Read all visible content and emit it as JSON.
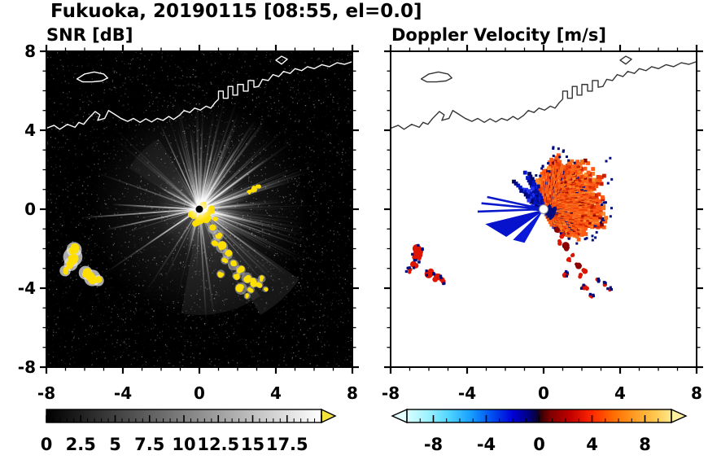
{
  "title": "Fukuoka, 20190115 [08:55, el=0.0]",
  "axes": {
    "xlim": [
      -8,
      8
    ],
    "ylim": [
      -8,
      8
    ],
    "xticks": [
      "-8",
      "-4",
      "0",
      "4",
      "8"
    ],
    "xtick_values": [
      -8,
      -4,
      0,
      4,
      8
    ],
    "yticks": [
      "8",
      "4",
      "0",
      "-4",
      "-8"
    ],
    "ytick_values": [
      8,
      4,
      0,
      -4,
      -8
    ]
  },
  "coastline": {
    "color_snr": "#ffffff",
    "color_vel": "#333333",
    "paths": [
      {
        "closed": false,
        "points": [
          [
            -8,
            4.1
          ],
          [
            -7.6,
            4.25
          ],
          [
            -7.3,
            4.05
          ],
          [
            -6.9,
            4.3
          ],
          [
            -6.5,
            4.15
          ],
          [
            -6.3,
            4.4
          ],
          [
            -6.05,
            4.3
          ],
          [
            -5.8,
            4.6
          ],
          [
            -5.45,
            4.95
          ],
          [
            -5.2,
            4.78
          ],
          [
            -5.32,
            4.5
          ],
          [
            -4.95,
            4.6
          ],
          [
            -4.75,
            5.0
          ],
          [
            -4.45,
            4.82
          ],
          [
            -4.1,
            4.6
          ],
          [
            -3.75,
            4.45
          ],
          [
            -3.45,
            4.6
          ],
          [
            -3.1,
            4.4
          ],
          [
            -2.8,
            4.58
          ],
          [
            -2.5,
            4.42
          ],
          [
            -2.2,
            4.6
          ],
          [
            -1.9,
            4.5
          ],
          [
            -1.6,
            4.7
          ],
          [
            -1.35,
            4.55
          ],
          [
            -1.05,
            4.75
          ],
          [
            -0.8,
            5.0
          ],
          [
            -0.5,
            4.9
          ],
          [
            -0.25,
            5.12
          ],
          [
            0.05,
            5.02
          ],
          [
            0.35,
            5.22
          ],
          [
            0.6,
            5.12
          ],
          [
            0.82,
            5.4
          ],
          [
            1.0,
            5.58
          ],
          [
            1.0,
            5.98
          ],
          [
            1.25,
            5.98
          ],
          [
            1.25,
            5.62
          ],
          [
            1.5,
            5.62
          ],
          [
            1.5,
            6.22
          ],
          [
            1.75,
            6.22
          ],
          [
            1.75,
            5.78
          ],
          [
            2.0,
            5.78
          ],
          [
            2.0,
            6.32
          ],
          [
            2.3,
            6.32
          ],
          [
            2.3,
            5.98
          ],
          [
            2.55,
            5.98
          ],
          [
            2.55,
            6.52
          ],
          [
            2.85,
            6.52
          ],
          [
            2.85,
            6.18
          ],
          [
            3.1,
            6.22
          ],
          [
            3.3,
            6.58
          ],
          [
            3.6,
            6.52
          ],
          [
            3.85,
            6.82
          ],
          [
            4.15,
            6.72
          ],
          [
            4.4,
            6.98
          ],
          [
            4.75,
            6.88
          ],
          [
            5.0,
            7.12
          ],
          [
            5.35,
            7.02
          ],
          [
            5.65,
            7.22
          ],
          [
            6.0,
            7.12
          ],
          [
            6.4,
            7.32
          ],
          [
            6.8,
            7.22
          ],
          [
            7.2,
            7.42
          ],
          [
            7.6,
            7.34
          ],
          [
            8,
            7.48
          ]
        ]
      },
      {
        "closed": true,
        "points": [
          [
            -6.4,
            6.6
          ],
          [
            -6.0,
            6.85
          ],
          [
            -5.5,
            6.95
          ],
          [
            -5.0,
            6.85
          ],
          [
            -4.8,
            6.65
          ],
          [
            -5.1,
            6.5
          ],
          [
            -5.6,
            6.45
          ],
          [
            -6.1,
            6.45
          ]
        ]
      },
      {
        "closed": true,
        "points": [
          [
            4.0,
            7.55
          ],
          [
            4.3,
            7.75
          ],
          [
            4.6,
            7.6
          ],
          [
            4.3,
            7.35
          ]
        ]
      }
    ]
  },
  "echo_features": {
    "center_cluster": [
      [
        0.4,
        -0.35,
        0.26
      ],
      [
        0.0,
        -0.5,
        0.2
      ],
      [
        -0.38,
        -0.28,
        0.18
      ],
      [
        0.62,
        -0.05,
        0.18
      ],
      [
        0.25,
        0.2,
        0.15
      ],
      [
        -0.15,
        -0.72,
        0.15
      ],
      [
        0.85,
        -0.55,
        0.14
      ]
    ],
    "arc": [
      [
        0.7,
        -1.0,
        0.16
      ],
      [
        0.98,
        -1.32,
        0.18
      ],
      [
        0.84,
        -1.68,
        0.15
      ],
      [
        1.18,
        -1.92,
        0.2
      ],
      [
        1.48,
        -2.28,
        0.17
      ],
      [
        1.34,
        -2.58,
        0.14
      ],
      [
        1.78,
        -2.82,
        0.18
      ],
      [
        2.16,
        -3.08,
        0.16
      ],
      [
        1.94,
        -3.38,
        0.14
      ],
      [
        2.48,
        -3.48,
        0.18
      ],
      [
        2.88,
        -3.72,
        0.16
      ],
      [
        3.26,
        -3.52,
        0.13
      ],
      [
        2.68,
        -4.08,
        0.13
      ]
    ],
    "e_dashes": [
      [
        2.6,
        0.85,
        0.13
      ],
      [
        2.85,
        1.0,
        0.13
      ],
      [
        3.08,
        1.14,
        0.1
      ]
    ],
    "sw_patches": [
      [
        -6.55,
        -2.05,
        0.22
      ],
      [
        -6.62,
        -2.42,
        0.28
      ],
      [
        -6.72,
        -2.78,
        0.2
      ],
      [
        -7.02,
        -3.12,
        0.16
      ],
      [
        -5.95,
        -3.22,
        0.2
      ],
      [
        -5.6,
        -3.48,
        0.24
      ],
      [
        -5.28,
        -3.62,
        0.16
      ]
    ],
    "s_patches": [
      [
        1.12,
        -3.28,
        0.14
      ],
      [
        2.18,
        -4.02,
        0.2
      ],
      [
        2.5,
        -4.4,
        0.11
      ],
      [
        3.15,
        -3.82,
        0.12
      ],
      [
        2.8,
        -3.6,
        0.1
      ],
      [
        3.45,
        -4.05,
        0.1
      ]
    ]
  },
  "chart_data": [
    {
      "type": "heatmap",
      "id": "snr",
      "title": "SNR [dB]",
      "xlim": [
        -8,
        8
      ],
      "ylim": [
        -8,
        8
      ],
      "xticks": [
        -8,
        -4,
        0,
        4,
        8
      ],
      "yticks": [
        -8,
        -4,
        0,
        4,
        8
      ],
      "background": "#000000",
      "radar_center": [
        0,
        0
      ],
      "strong_echo_color": "#ffdf00",
      "seed": 20190115,
      "long_rays": [
        {
          "dir_deg": 184,
          "r": 6.2
        },
        {
          "dir_deg": 177,
          "r": 4.6
        },
        {
          "dir_deg": 192,
          "r": 5.0
        },
        {
          "dir_deg": 213,
          "r": 3.3
        },
        {
          "dir_deg": 152,
          "r": 2.4
        },
        {
          "dir_deg": 36,
          "r": 4.4
        },
        {
          "dir_deg": 58,
          "r": 3.6
        }
      ],
      "colorbar": {
        "range": [
          0,
          20
        ],
        "tick_labels": [
          "0",
          "2.5",
          "5",
          "7.5",
          "10",
          "12.5",
          "15",
          "17.5"
        ],
        "tick_values": [
          0,
          2.5,
          5,
          7.5,
          10,
          12.5,
          15,
          17.5
        ],
        "minor_step": 0.5,
        "major_step": 2.5,
        "gradient": [
          "#000000",
          "#ffffff"
        ],
        "over_arrow": "#f2e43c"
      }
    },
    {
      "type": "heatmap",
      "id": "velocity",
      "title": "Doppler Velocity [m/s]",
      "xlim": [
        -8,
        8
      ],
      "ylim": [
        -8,
        8
      ],
      "xticks": [
        -8,
        -4,
        0,
        4,
        8
      ],
      "yticks": [
        -8,
        -4,
        0,
        4,
        8
      ],
      "background": "#ffffff",
      "radar_center": [
        0,
        0
      ],
      "seed": 855,
      "fan": {
        "phi_range": [
          -62,
          104
        ],
        "r_profile": [
          [
            -62,
            1.0
          ],
          [
            -45,
            2.05
          ],
          [
            -30,
            2.65
          ],
          [
            -15,
            3.0
          ],
          [
            0,
            3.1
          ],
          [
            15,
            3.35
          ],
          [
            30,
            3.25
          ],
          [
            45,
            3.0
          ],
          [
            60,
            2.7
          ],
          [
            75,
            2.6
          ],
          [
            90,
            2.3
          ],
          [
            104,
            1.4
          ]
        ],
        "palette_pos": [
          "#ff5a14",
          "#f2701e",
          "#e83c08",
          "#c81e00",
          "#ff8c28"
        ],
        "dark_red": "#8c0600",
        "navy": "#000e82",
        "inner_navy_phi": [
          -50,
          22
        ],
        "inner_navy_r": 0.62
      },
      "west": {
        "palette": [
          "#0014c8",
          "#000a8c",
          "#2434ee",
          "#000664"
        ],
        "bands": [
          {
            "phi": [
              104,
              150
            ],
            "r_base": 0.9,
            "r_var": 1.5
          },
          {
            "phi": [
              150,
              178
            ],
            "r_base": 0.45,
            "r_var": 0.75
          }
        ]
      },
      "wedges": [
        [
          [
            0.1,
            0.0
          ],
          [
            -3.05,
            -0.75
          ],
          [
            -1.95,
            -1.4
          ]
        ],
        [
          [
            0.0,
            0.0
          ],
          [
            -1.6,
            -1.55
          ],
          [
            -1.0,
            -1.7
          ]
        ]
      ],
      "wedge_colors": [
        "#0712cc",
        "#0a1ad8"
      ],
      "rays": [
        [
          -3.25,
          0.3
        ],
        [
          -3.45,
          -0.12
        ],
        [
          -2.95,
          0.62
        ]
      ],
      "ray_color": "#0a18cc",
      "patch_pos_color": "#dc1400",
      "patch_dark": "#8a0000",
      "patch_navy": "#000a78",
      "colorbar": {
        "range": [
          -10,
          10
        ],
        "tick_labels": [
          "-8",
          "-4",
          "0",
          "4",
          "8"
        ],
        "tick_values": [
          -8,
          -4,
          0,
          4,
          8
        ],
        "minor_step": 1,
        "major_step": 4,
        "gradient_stops": [
          [
            0,
            "#d8ffff"
          ],
          [
            0.08,
            "#9cf2ff"
          ],
          [
            0.16,
            "#4fd4ff"
          ],
          [
            0.24,
            "#18a0ff"
          ],
          [
            0.32,
            "#0050f0"
          ],
          [
            0.4,
            "#0000d8"
          ],
          [
            0.46,
            "#000080"
          ],
          [
            0.495,
            "#0c0030"
          ],
          [
            0.505,
            "#300008"
          ],
          [
            0.54,
            "#7c0000"
          ],
          [
            0.62,
            "#c40000"
          ],
          [
            0.7,
            "#ff2800"
          ],
          [
            0.78,
            "#ff6c00"
          ],
          [
            0.86,
            "#ff9c24"
          ],
          [
            0.94,
            "#ffc850"
          ],
          [
            1,
            "#ffe88c"
          ]
        ],
        "under_arrow": "#e4ffff",
        "over_arrow": "#fff0a0"
      }
    }
  ]
}
